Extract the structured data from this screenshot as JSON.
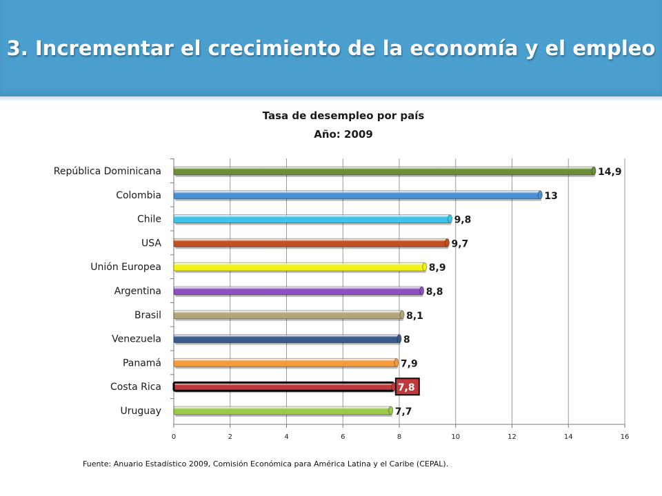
{
  "header": {
    "title": "3. Incrementar el crecimiento de la economía y el empleo"
  },
  "chart_data": {
    "type": "bar",
    "orientation": "horizontal",
    "title": "Tasa de desempleo por país",
    "subtitle": "Año: 2009",
    "categories": [
      "República Dominicana",
      "Colombia",
      "Chile",
      "USA",
      "Unión Europea",
      "Argentina",
      "Brasil",
      "Venezuela",
      "Panamá",
      "Costa Rica",
      "Uruguay"
    ],
    "values": [
      14.9,
      13,
      9.8,
      9.7,
      8.9,
      8.8,
      8.1,
      8,
      7.9,
      7.8,
      7.7
    ],
    "value_labels": [
      "14,9",
      "13",
      "9,8",
      "9,7",
      "8,9",
      "8,8",
      "8,1",
      "8",
      "7,9",
      "7,8",
      "7,7"
    ],
    "colors": [
      "#6b8f3a",
      "#4a8fd6",
      "#3fc4e8",
      "#c0501f",
      "#f2f21a",
      "#8c4fc4",
      "#b3a47a",
      "#3a5a8c",
      "#f59a3c",
      "#c0393c",
      "#9cc94a"
    ],
    "highlight": "Costa Rica",
    "xlim": [
      0,
      16
    ],
    "xticks": [
      "0",
      "2",
      "4",
      "6",
      "8",
      "10",
      "12",
      "14",
      "16"
    ],
    "grid": true
  },
  "source": "Fuente: Anuario Estadístico 2009, Comisión Económica para América Latina y el Caribe (CEPAL)."
}
